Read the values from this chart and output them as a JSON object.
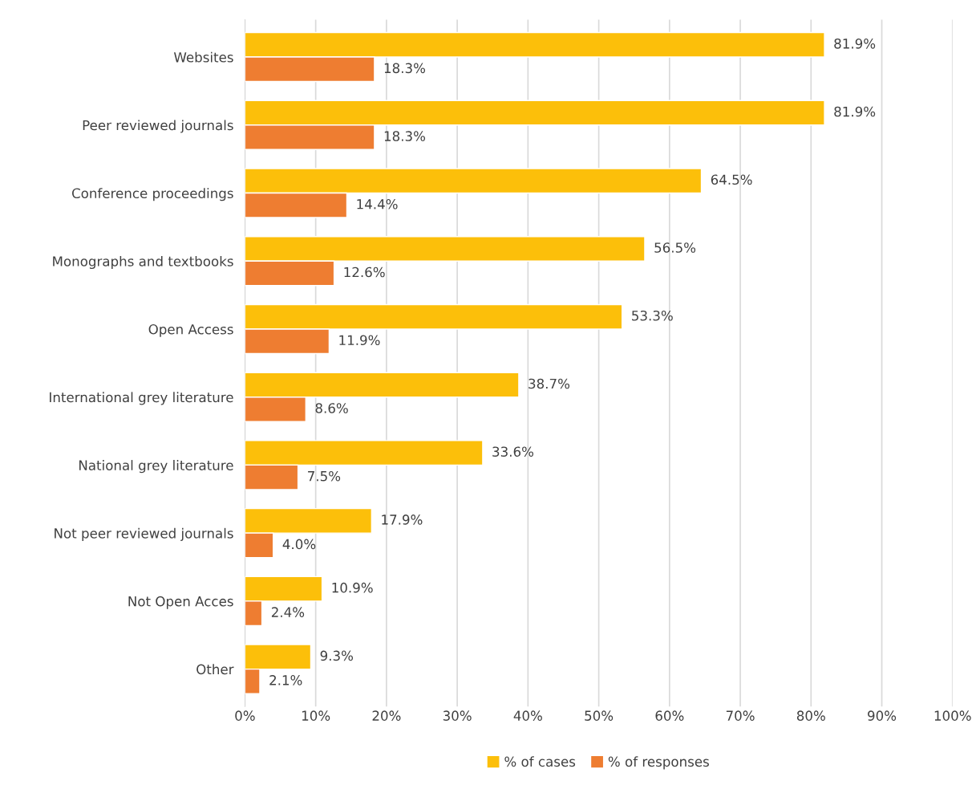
{
  "chart_data": {
    "type": "bar",
    "orientation": "horizontal",
    "categories": [
      "Websites",
      "Peer reviewed journals",
      "Conference proceedings",
      "Monographs and textbooks",
      "Open Access",
      "International grey literature",
      "National grey literature",
      "Not peer reviewed journals",
      "Not Open Acces",
      "Other"
    ],
    "series": [
      {
        "name": "% of cases",
        "color": "#fcbf0a",
        "values": [
          81.9,
          81.9,
          64.5,
          56.5,
          53.3,
          38.7,
          33.6,
          17.9,
          10.9,
          9.3
        ],
        "value_labels": [
          "81.9%",
          "81.9%",
          "64.5%",
          "56.5%",
          "53.3%",
          "38.7%",
          "33.6%",
          "17.9%",
          "10.9%",
          "9.3%"
        ]
      },
      {
        "name": "% of responses",
        "color": "#ee7d31",
        "values": [
          18.3,
          18.3,
          14.4,
          12.6,
          11.9,
          8.6,
          7.5,
          4.0,
          2.4,
          2.1
        ],
        "value_labels": [
          "18.3%",
          "18.3%",
          "14.4%",
          "12.6%",
          "11.9%",
          "8.6%",
          "7.5%",
          "4.0%",
          "2.4%",
          "2.1%"
        ]
      }
    ],
    "xlim": [
      0,
      100
    ],
    "xticks": [
      {
        "value": 0,
        "label": "0%"
      },
      {
        "value": 10,
        "label": "10%"
      },
      {
        "value": 20,
        "label": "20%"
      },
      {
        "value": 30,
        "label": "30%"
      },
      {
        "value": 40,
        "label": "40%"
      },
      {
        "value": 50,
        "label": "50%"
      },
      {
        "value": 60,
        "label": "60%"
      },
      {
        "value": 70,
        "label": "70%"
      },
      {
        "value": 80,
        "label": "80%"
      },
      {
        "value": 90,
        "label": "90%"
      },
      {
        "value": 100,
        "label": "100%"
      }
    ],
    "grid": "x",
    "legend": "bottom"
  }
}
